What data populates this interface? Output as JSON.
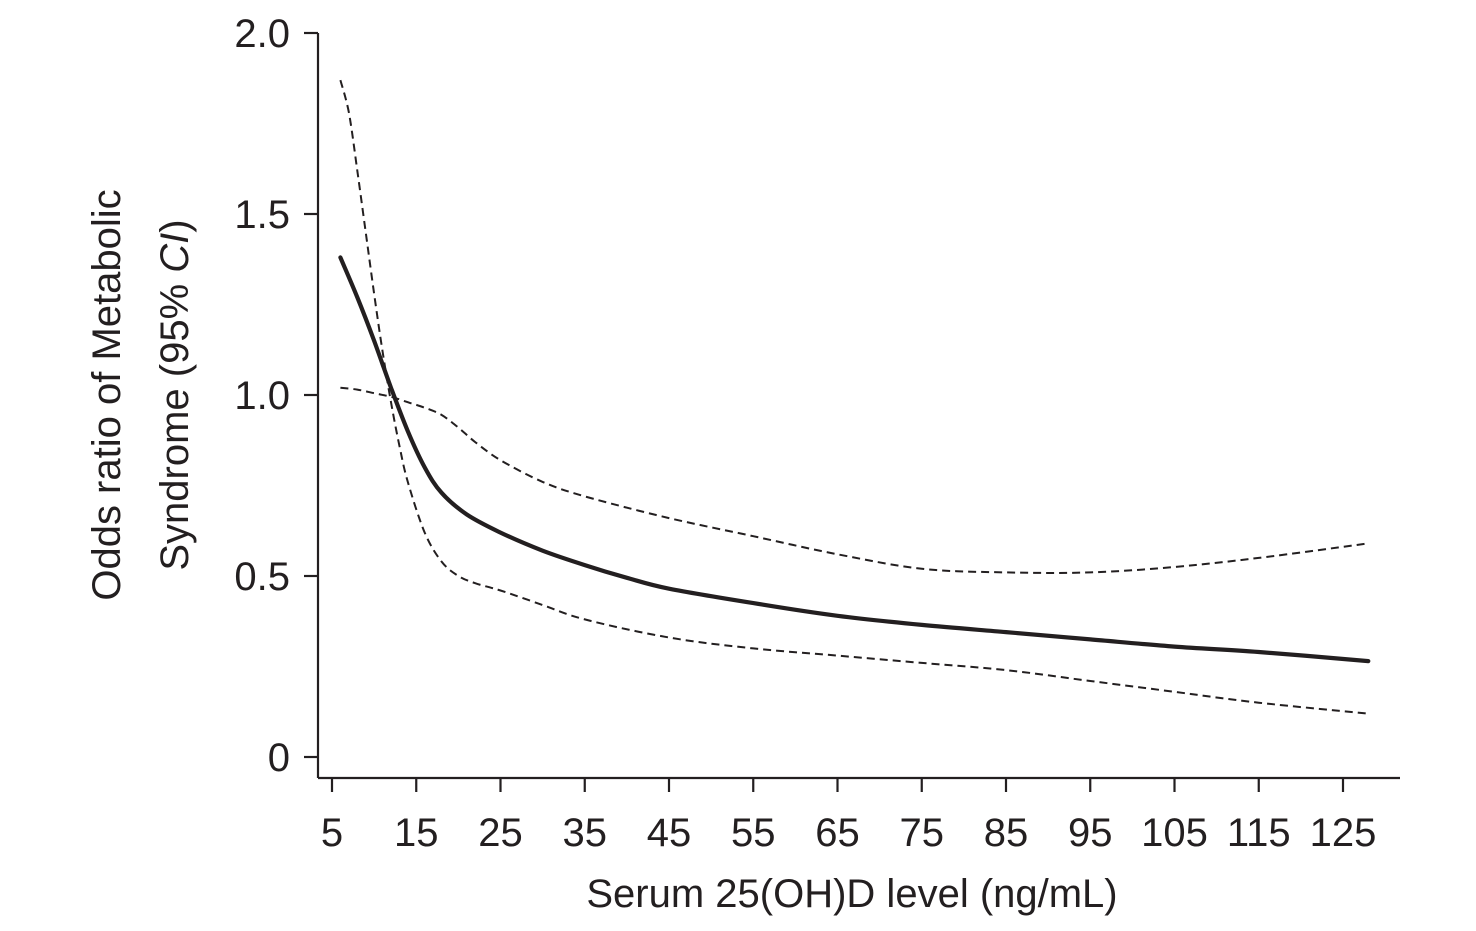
{
  "chart_data": {
    "type": "line",
    "title": "",
    "xlabel": "Serum 25(OH)D level (ng/mL)",
    "ylabel_line1": "Odds ratio of Metabolic",
    "ylabel_line2_prefix": "Syndrome (95% ",
    "ylabel_line2_italic": "CI",
    "ylabel_line2_suffix": ")",
    "xlim": [
      3,
      135
    ],
    "ylim": [
      -0.06,
      2.0
    ],
    "x_ticks": [
      5,
      15,
      25,
      35,
      45,
      55,
      65,
      75,
      85,
      95,
      105,
      115,
      125
    ],
    "y_ticks": [
      0,
      0.5,
      1.0,
      1.5,
      2.0
    ],
    "y_tick_labels": [
      "0",
      "0.5",
      "1.0",
      "1.5",
      "2.0"
    ],
    "grid": false,
    "series": [
      {
        "role": "estimate",
        "style": "solid",
        "color": "#231f20",
        "x": [
          6,
          8,
          10,
          12,
          14,
          16,
          18,
          21,
          25,
          30,
          35,
          40,
          45,
          55,
          65,
          75,
          85,
          95,
          105,
          115,
          128
        ],
        "y": [
          1.38,
          1.27,
          1.15,
          1.02,
          0.9,
          0.8,
          0.73,
          0.67,
          0.62,
          0.57,
          0.53,
          0.495,
          0.465,
          0.425,
          0.39,
          0.365,
          0.345,
          0.325,
          0.305,
          0.29,
          0.265
        ]
      },
      {
        "role": "upper 95% CI",
        "style": "dashed",
        "color": "#231f20",
        "x": [
          6,
          7,
          8,
          9,
          10,
          11,
          12,
          13,
          14,
          16,
          18,
          20,
          22,
          25,
          30,
          35,
          45,
          55,
          65,
          75,
          85,
          95,
          105,
          115,
          128
        ],
        "y": [
          1.87,
          1.78,
          1.62,
          1.45,
          1.28,
          1.12,
          0.98,
          0.86,
          0.76,
          0.62,
          0.54,
          0.5,
          0.48,
          0.46,
          0.42,
          0.38,
          0.33,
          0.3,
          0.28,
          0.26,
          0.24,
          0.21,
          0.18,
          0.15,
          0.12
        ]
      },
      {
        "role": "lower 95% CI",
        "style": "dashed",
        "color": "#231f20",
        "x": [
          6,
          8,
          10,
          12,
          14,
          16,
          18,
          20,
          22,
          25,
          30,
          35,
          45,
          55,
          65,
          75,
          85,
          95,
          105,
          115,
          128
        ],
        "y": [
          1.02,
          1.015,
          1.005,
          0.995,
          0.98,
          0.965,
          0.945,
          0.91,
          0.87,
          0.82,
          0.76,
          0.72,
          0.66,
          0.61,
          0.56,
          0.52,
          0.51,
          0.51,
          0.525,
          0.55,
          0.59
        ]
      }
    ]
  }
}
